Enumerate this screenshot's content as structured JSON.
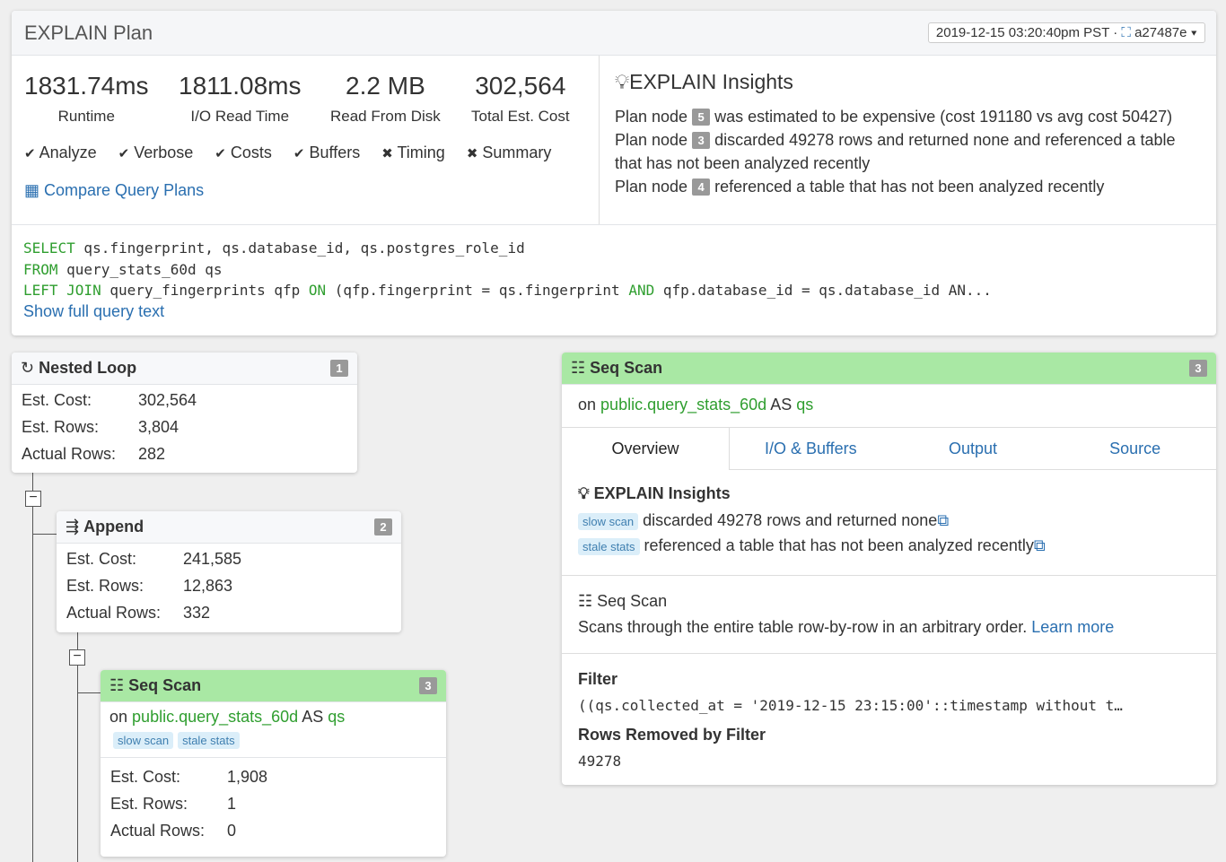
{
  "header": {
    "title": "EXPLAIN Plan",
    "selector": "2019-12-15 03:20:40pm PST · ",
    "selector_id": "a27487e"
  },
  "stats": [
    {
      "value": "1831.74ms",
      "label": "Runtime"
    },
    {
      "value": "1811.08ms",
      "label": "I/O Read Time"
    },
    {
      "value": "2.2 MB",
      "label": "Read From Disk"
    },
    {
      "value": "302,564",
      "label": "Total Est. Cost"
    }
  ],
  "options": [
    {
      "label": "Analyze",
      "on": true
    },
    {
      "label": "Verbose",
      "on": true
    },
    {
      "label": "Costs",
      "on": true
    },
    {
      "label": "Buffers",
      "on": true
    },
    {
      "label": "Timing",
      "on": false
    },
    {
      "label": "Summary",
      "on": false
    }
  ],
  "compare_link": "Compare Query Plans",
  "insights": {
    "title": "EXPLAIN Insights",
    "items": [
      {
        "pre": "Plan node",
        "node": "5",
        "text": "was estimated to be expensive (cost 191180 vs avg cost 50427)"
      },
      {
        "pre": "Plan node",
        "node": "3",
        "text": "discarded 49278 rows and returned none and referenced a table that has not been analyzed recently"
      },
      {
        "pre": "Plan node",
        "node": "4",
        "text": "referenced a table that has not been analyzed recently"
      }
    ]
  },
  "query": {
    "l1kw": "SELECT",
    "l1": " qs.fingerprint, qs.database_id, qs.postgres_role_id",
    "l2kw": "FROM",
    "l2": " query_stats_60d qs",
    "l3kw1": "LEFT JOIN",
    "l3a": " query_fingerprints qfp ",
    "l3kw2": "ON",
    "l3b": " (qfp.fingerprint = qs.fingerprint ",
    "l3kw3": "AND",
    "l3c": " qfp.database_id = qs.database_id AN...",
    "show_full": "Show full query text"
  },
  "nodes": {
    "nested": {
      "title": "Nested Loop",
      "num": "1",
      "cost": "302,564",
      "rows": "3,804",
      "actual": "282"
    },
    "append": {
      "title": "Append",
      "num": "2",
      "cost": "241,585",
      "rows": "12,863",
      "actual": "332"
    },
    "seq": {
      "title": "Seq Scan",
      "num": "3",
      "on": "on",
      "table": "public.query_stats_60d",
      "as": "AS",
      "alias": "qs",
      "tags": [
        "slow scan",
        "stale stats"
      ],
      "cost": "1,908",
      "rows": "1",
      "actual": "0"
    },
    "labels": {
      "cost": "Est. Cost:",
      "rows": "Est. Rows:",
      "actual": "Actual Rows:"
    }
  },
  "detail": {
    "title": "Seq Scan",
    "num": "3",
    "on": "on",
    "table": "public.query_stats_60d",
    "as": "AS",
    "alias": "qs",
    "tabs": [
      "Overview",
      "I/O & Buffers",
      "Output",
      "Source"
    ],
    "insights_title": "EXPLAIN Insights",
    "insights": [
      {
        "tag": "slow scan",
        "text": "discarded 49278 rows and returned none"
      },
      {
        "tag": "stale stats",
        "text": "referenced a table that has not been analyzed recently"
      }
    ],
    "desc_title": "Seq Scan",
    "desc": "Scans through the entire table row-by-row in an arbitrary order.",
    "learn_more": "Learn more",
    "filter_label": "Filter",
    "filter": "((qs.collected_at = '2019-12-15 23:15:00'::timestamp without t…",
    "removed_label": "Rows Removed by Filter",
    "removed": "49278"
  },
  "colors": {
    "accent": "#2a6fb0",
    "green_header": "#a9e8a4",
    "keyword": "#2f9e2f"
  }
}
